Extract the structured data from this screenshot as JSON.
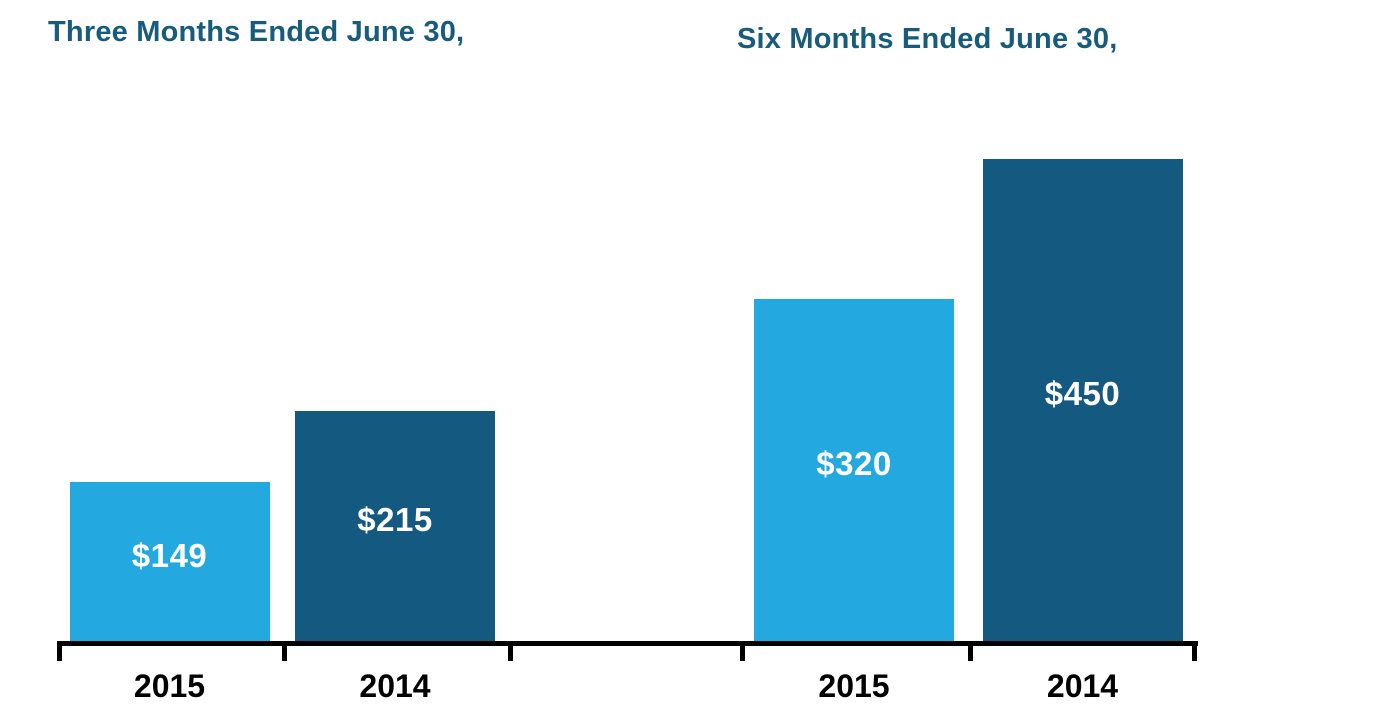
{
  "chart_data": {
    "type": "bar",
    "title": "",
    "grid": false,
    "legend_position": "none",
    "ylim": [
      0,
      460
    ],
    "value_prefix": "$",
    "groups": [
      {
        "title": "Three Months Ended June 30,",
        "categories": [
          "2015",
          "2014"
        ],
        "bars": [
          {
            "category": "2015",
            "value": 149,
            "label": "$149"
          },
          {
            "category": "2014",
            "value": 215,
            "label": "$215"
          }
        ]
      },
      {
        "title": "Six Months Ended June 30,",
        "categories": [
          "2015",
          "2014"
        ],
        "bars": [
          {
            "category": "2015",
            "value": 320,
            "label": "$320"
          },
          {
            "category": "2014",
            "value": 450,
            "label": "$450"
          }
        ]
      }
    ],
    "series_colors": {
      "2015": "#23a8e0",
      "2014": "#14597f"
    },
    "label_color": "#ffffff",
    "title_color": "#175c7d",
    "axis_color": "#000000"
  }
}
